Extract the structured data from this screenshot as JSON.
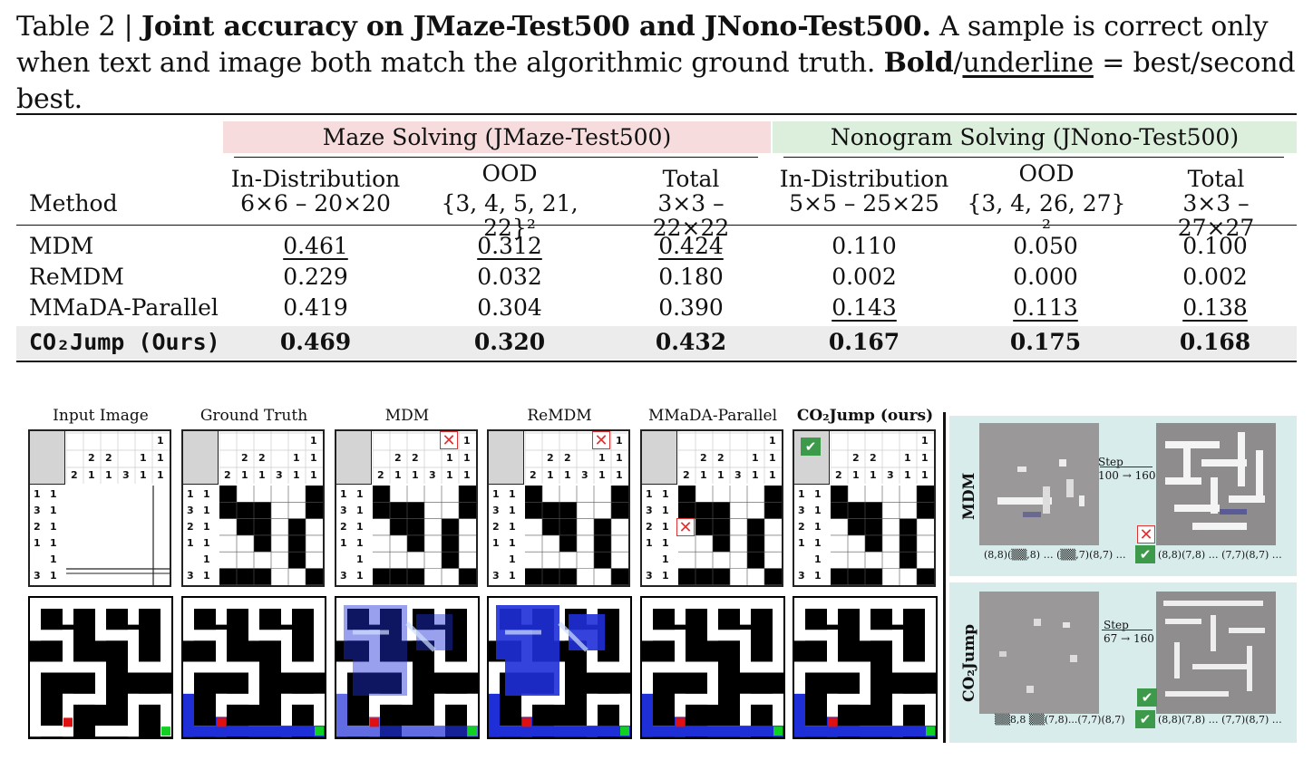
{
  "caption": {
    "prefix": "Table 2 | ",
    "bold_title": "Joint accuracy on JMaze-Test500 and JNono-Test500.",
    "body": " A sample is correct only when text and image both match the algorithmic ground truth. ",
    "bold_word": "Bold",
    "slash": "/",
    "underline_word": "underline",
    "suffix": " = best/second best."
  },
  "table": {
    "method_header": "Method",
    "group_maze": "Maze Solving (JMaze-Test500)",
    "group_nono": "Nonogram Solving (JNono-Test500)",
    "cols": [
      {
        "l1": "In-Distribution",
        "l2": "6×6 – 20×20"
      },
      {
        "l1": "OOD",
        "l2": "{3, 4, 5, 21, 22}²"
      },
      {
        "l1": "Total",
        "l2": "3×3 – 22×22"
      },
      {
        "l1": "In-Distribution",
        "l2": "5×5 – 25×25"
      },
      {
        "l1": "OOD",
        "l2": "{3, 4, 26, 27}²"
      },
      {
        "l1": "Total",
        "l2": "3×3 – 27×27"
      }
    ],
    "rows": [
      {
        "method": "MDM",
        "values": [
          "0.461",
          "0.312",
          "0.424",
          "0.110",
          "0.050",
          "0.100"
        ]
      },
      {
        "method": "ReMDM",
        "values": [
          "0.229",
          "0.032",
          "0.180",
          "0.002",
          "0.000",
          "0.002"
        ]
      },
      {
        "method": "MMaDA-Parallel",
        "values": [
          "0.419",
          "0.304",
          "0.390",
          "0.143",
          "0.113",
          "0.138"
        ]
      },
      {
        "method": "CO₂Jump (Ours)",
        "values": [
          "0.469",
          "0.320",
          "0.432",
          "0.167",
          "0.175",
          "0.168"
        ]
      }
    ]
  },
  "figure": {
    "columns": [
      "Input Image",
      "Ground Truth",
      "MDM",
      "ReMDM",
      "MMaDA-Parallel",
      "CO₂Jump (ours)"
    ],
    "nonogram_col_clues": [
      "1",
      "2 2",
      "1 1",
      "2 1 1 3 1 1"
    ],
    "nonogram_row_clues": [
      "1 1",
      "3 1",
      "2 1",
      "1 1",
      "1",
      "3 1"
    ],
    "side_top_label": "MDM",
    "side_bottom_label": "CO₂Jump",
    "step_top": "Step",
    "step_top_range": "100 → 160",
    "step_bottom": "Step",
    "step_bottom_range": "67 → 160",
    "seq_top_left": "(8,8)(▒▒,8) … (▒▒,7)(8,7) …",
    "seq_top_right": "(8,8)(7,8) … (7,7)(8,7) …",
    "seq_bottom_left": "▒▒8,8 ▒▒(7,8)...(7,7)(8,7)",
    "seq_bottom_right": "(8,8)(7,8) … (7,7)(8,7) …"
  },
  "colors": {
    "maze_band": "#f6dcdd",
    "nono_band": "#dcefdc",
    "best_row": "#ececec",
    "check": "#3d9a4a",
    "cross": "#d33333",
    "path": "#1f2fd8"
  }
}
